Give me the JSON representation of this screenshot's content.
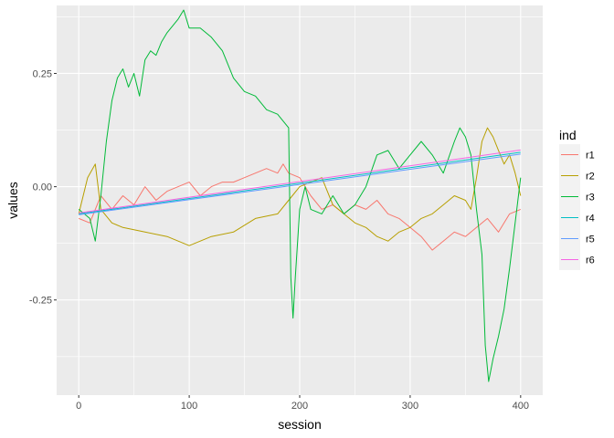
{
  "chart_data": {
    "type": "line",
    "xlabel": "session",
    "ylabel": "values",
    "xlim": [
      -20,
      420
    ],
    "ylim": [
      -0.46,
      0.4
    ],
    "x_ticks": [
      0,
      100,
      200,
      300,
      400
    ],
    "x_tick_labels": [
      "0",
      "100",
      "200",
      "300",
      "400"
    ],
    "y_ticks": [
      -0.25,
      0,
      0.25
    ],
    "y_tick_labels": [
      "-0.25",
      "0.00",
      "0.25"
    ],
    "grid": true,
    "legend": {
      "title": "ind",
      "position": "right"
    },
    "series": [
      {
        "name": "r1",
        "color": "#F8766D",
        "points": [
          [
            0,
            -0.07
          ],
          [
            10,
            -0.08
          ],
          [
            20,
            -0.02
          ],
          [
            30,
            -0.05
          ],
          [
            40,
            -0.02
          ],
          [
            50,
            -0.04
          ],
          [
            60,
            0.0
          ],
          [
            70,
            -0.03
          ],
          [
            80,
            -0.01
          ],
          [
            90,
            0.0
          ],
          [
            100,
            0.01
          ],
          [
            110,
            -0.02
          ],
          [
            120,
            0.0
          ],
          [
            130,
            0.01
          ],
          [
            140,
            0.01
          ],
          [
            150,
            0.02
          ],
          [
            160,
            0.03
          ],
          [
            170,
            0.04
          ],
          [
            180,
            0.03
          ],
          [
            185,
            0.05
          ],
          [
            190,
            0.03
          ],
          [
            200,
            0.02
          ],
          [
            210,
            -0.02
          ],
          [
            220,
            -0.05
          ],
          [
            230,
            -0.04
          ],
          [
            240,
            -0.06
          ],
          [
            250,
            -0.04
          ],
          [
            260,
            -0.05
          ],
          [
            270,
            -0.03
          ],
          [
            280,
            -0.06
          ],
          [
            290,
            -0.07
          ],
          [
            300,
            -0.09
          ],
          [
            310,
            -0.11
          ],
          [
            320,
            -0.14
          ],
          [
            330,
            -0.12
          ],
          [
            340,
            -0.1
          ],
          [
            350,
            -0.11
          ],
          [
            360,
            -0.09
          ],
          [
            370,
            -0.07
          ],
          [
            380,
            -0.1
          ],
          [
            390,
            -0.06
          ],
          [
            400,
            -0.05
          ]
        ]
      },
      {
        "name": "r2",
        "color": "#B79F00",
        "points": [
          [
            0,
            -0.06
          ],
          [
            8,
            0.02
          ],
          [
            15,
            0.05
          ],
          [
            20,
            -0.05
          ],
          [
            30,
            -0.08
          ],
          [
            40,
            -0.09
          ],
          [
            60,
            -0.1
          ],
          [
            80,
            -0.11
          ],
          [
            100,
            -0.13
          ],
          [
            120,
            -0.11
          ],
          [
            140,
            -0.1
          ],
          [
            160,
            -0.07
          ],
          [
            180,
            -0.06
          ],
          [
            190,
            -0.03
          ],
          [
            200,
            0.0
          ],
          [
            210,
            0.01
          ],
          [
            220,
            0.02
          ],
          [
            230,
            -0.04
          ],
          [
            240,
            -0.06
          ],
          [
            250,
            -0.08
          ],
          [
            260,
            -0.09
          ],
          [
            270,
            -0.11
          ],
          [
            280,
            -0.12
          ],
          [
            290,
            -0.1
          ],
          [
            300,
            -0.09
          ],
          [
            310,
            -0.07
          ],
          [
            320,
            -0.06
          ],
          [
            330,
            -0.04
          ],
          [
            340,
            -0.02
          ],
          [
            350,
            -0.03
          ],
          [
            355,
            -0.05
          ],
          [
            360,
            0.02
          ],
          [
            365,
            0.1
          ],
          [
            370,
            0.13
          ],
          [
            375,
            0.11
          ],
          [
            380,
            0.08
          ],
          [
            385,
            0.05
          ],
          [
            390,
            0.07
          ],
          [
            395,
            0.03
          ],
          [
            400,
            -0.02
          ]
        ]
      },
      {
        "name": "r3",
        "color": "#00BA38",
        "points": [
          [
            0,
            -0.05
          ],
          [
            10,
            -0.07
          ],
          [
            15,
            -0.12
          ],
          [
            20,
            -0.02
          ],
          [
            25,
            0.1
          ],
          [
            30,
            0.19
          ],
          [
            35,
            0.24
          ],
          [
            40,
            0.26
          ],
          [
            45,
            0.22
          ],
          [
            50,
            0.25
          ],
          [
            55,
            0.2
          ],
          [
            60,
            0.28
          ],
          [
            65,
            0.3
          ],
          [
            70,
            0.29
          ],
          [
            75,
            0.32
          ],
          [
            80,
            0.34
          ],
          [
            90,
            0.37
          ],
          [
            95,
            0.39
          ],
          [
            100,
            0.35
          ],
          [
            110,
            0.35
          ],
          [
            120,
            0.33
          ],
          [
            130,
            0.3
          ],
          [
            140,
            0.24
          ],
          [
            150,
            0.21
          ],
          [
            160,
            0.2
          ],
          [
            170,
            0.17
          ],
          [
            180,
            0.16
          ],
          [
            190,
            0.13
          ],
          [
            192,
            -0.2
          ],
          [
            194,
            -0.29
          ],
          [
            196,
            -0.2
          ],
          [
            200,
            -0.05
          ],
          [
            205,
            0.0
          ],
          [
            210,
            -0.05
          ],
          [
            220,
            -0.06
          ],
          [
            230,
            -0.02
          ],
          [
            240,
            -0.06
          ],
          [
            250,
            -0.04
          ],
          [
            260,
            0.0
          ],
          [
            270,
            0.07
          ],
          [
            280,
            0.08
          ],
          [
            290,
            0.04
          ],
          [
            300,
            0.07
          ],
          [
            310,
            0.1
          ],
          [
            320,
            0.07
          ],
          [
            330,
            0.03
          ],
          [
            340,
            0.1
          ],
          [
            345,
            0.13
          ],
          [
            350,
            0.11
          ],
          [
            355,
            0.07
          ],
          [
            360,
            -0.05
          ],
          [
            365,
            -0.15
          ],
          [
            368,
            -0.35
          ],
          [
            371,
            -0.43
          ],
          [
            375,
            -0.38
          ],
          [
            380,
            -0.33
          ],
          [
            385,
            -0.27
          ],
          [
            390,
            -0.18
          ],
          [
            395,
            -0.08
          ],
          [
            400,
            0.02
          ]
        ]
      },
      {
        "name": "r4",
        "color": "#00BFC4",
        "points": [
          [
            0,
            -0.06
          ],
          [
            400,
            0.076
          ]
        ]
      },
      {
        "name": "r5",
        "color": "#619CFF",
        "points": [
          [
            0,
            -0.062
          ],
          [
            400,
            0.072
          ]
        ]
      },
      {
        "name": "r6",
        "color": "#F564E3",
        "points": [
          [
            0,
            -0.058
          ],
          [
            400,
            0.081
          ]
        ]
      }
    ]
  }
}
